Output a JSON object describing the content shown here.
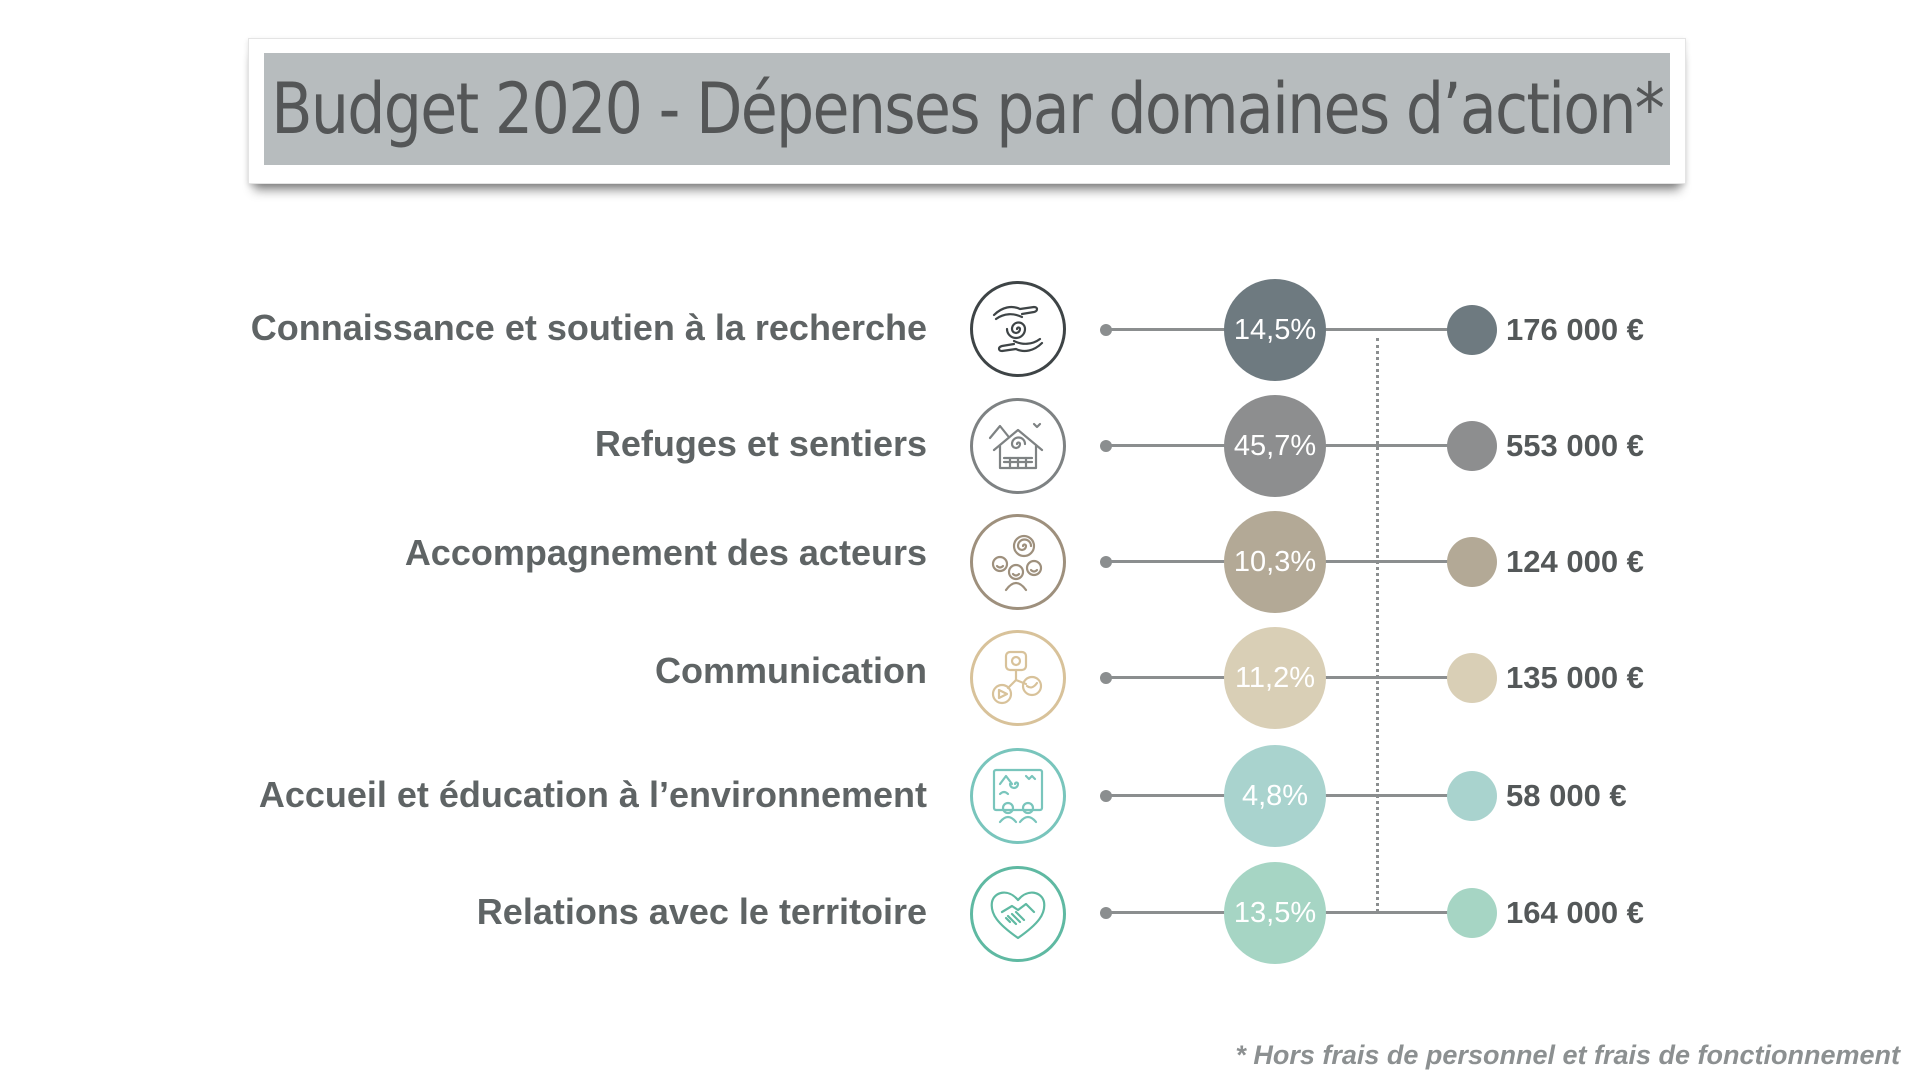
{
  "title": "Budget 2020 - Dépenses par domaines d’action*",
  "footnote": "* Hors frais de personnel et frais de fonctionnement",
  "chart_data": {
    "type": "table",
    "title": "Budget 2020 - Dépenses par domaines d’action*",
    "rows": [
      {
        "label": "Connaissance et soutien à la recherche",
        "percent": 14.5,
        "percent_label": "14,5%",
        "amount": 176000,
        "amount_label": "176 000 €",
        "color": "#6e7a80",
        "icon": "hands-spiral-icon"
      },
      {
        "label": "Refuges et sentiers",
        "percent": 45.7,
        "percent_label": "45,7%",
        "amount": 553000,
        "amount_label": "553 000 €",
        "color": "#8d8e8f",
        "icon": "mountain-refuge-icon"
      },
      {
        "label": "Accompagnement des acteurs",
        "percent": 10.3,
        "percent_label": "10,3%",
        "amount": 124000,
        "amount_label": "124 000 €",
        "color": "#b3a996",
        "icon": "people-group-icon"
      },
      {
        "label": "Communication",
        "percent": 11.2,
        "percent_label": "11,2%",
        "amount": 135000,
        "amount_label": "135 000 €",
        "color": "#d9cfb6",
        "icon": "social-media-icon"
      },
      {
        "label": "Accueil et éducation à l’environnement",
        "percent": 4.8,
        "percent_label": "4,8%",
        "amount": 58000,
        "amount_label": "58 000 €",
        "color": "#a9d3ce",
        "icon": "education-board-icon"
      },
      {
        "label": "Relations avec le territoire",
        "percent": 13.5,
        "percent_label": "13,5%",
        "amount": 164000,
        "amount_label": "164 000 €",
        "color": "#a6d5c4",
        "icon": "heart-handshake-icon"
      }
    ]
  },
  "icon_border_colors": [
    "#3e4446",
    "#7e8283",
    "#9e907d",
    "#d8c29a",
    "#79c5bc",
    "#5fb9a2"
  ]
}
